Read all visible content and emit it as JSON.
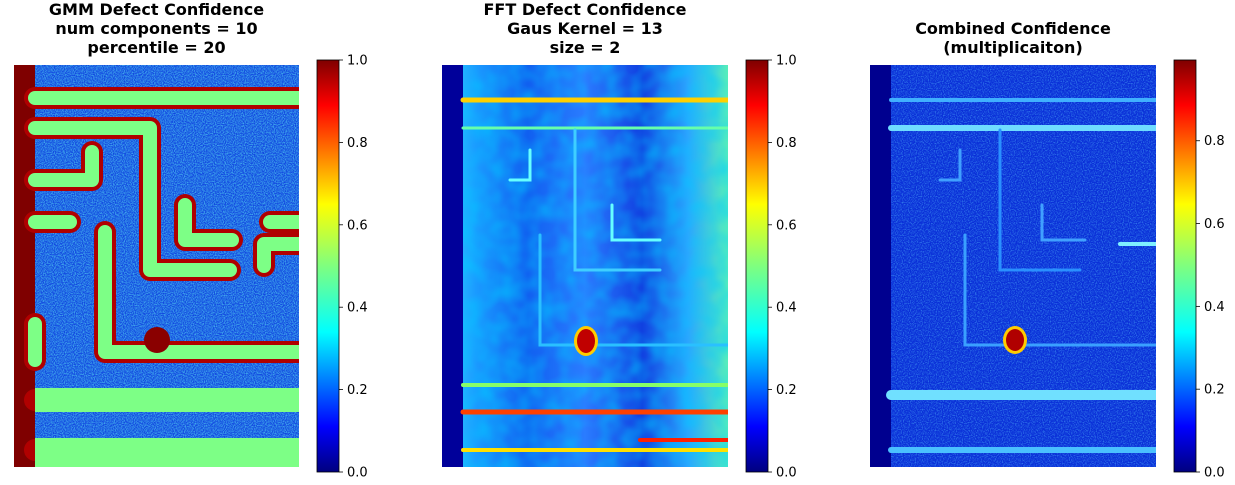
{
  "colors": {
    "jet_low": "#00007f",
    "jet_mid": "#7fff7f",
    "jet_high": "#7f0000"
  },
  "chart_data": [
    {
      "type": "heatmap",
      "title_lines": [
        "GMM Defect Confidence",
        "num components = 10",
        "percentile = 20"
      ],
      "colormap": "jet",
      "colorbar": {
        "ticks": [
          "0.0",
          "0.2",
          "0.4",
          "0.6",
          "0.8",
          "1.0"
        ],
        "range": [
          0,
          1
        ]
      },
      "axis": "off"
    },
    {
      "type": "heatmap",
      "title_lines": [
        "FFT Defect Confidence",
        "Gaus Kernel = 13",
        "size = 2"
      ],
      "colormap": "jet",
      "colorbar": {
        "ticks": [
          "0.0",
          "0.2",
          "0.4",
          "0.6",
          "0.8",
          "1.0"
        ],
        "range": [
          0,
          1
        ]
      },
      "axis": "off"
    },
    {
      "type": "heatmap",
      "title_lines": [
        "Combined Confidence",
        "(multiplicaiton)"
      ],
      "colormap": "jet",
      "colorbar": {
        "ticks": [
          "0.0",
          "0.2",
          "0.4",
          "0.6",
          "0.8"
        ],
        "range": [
          0,
          1
        ]
      },
      "axis": "off"
    }
  ]
}
